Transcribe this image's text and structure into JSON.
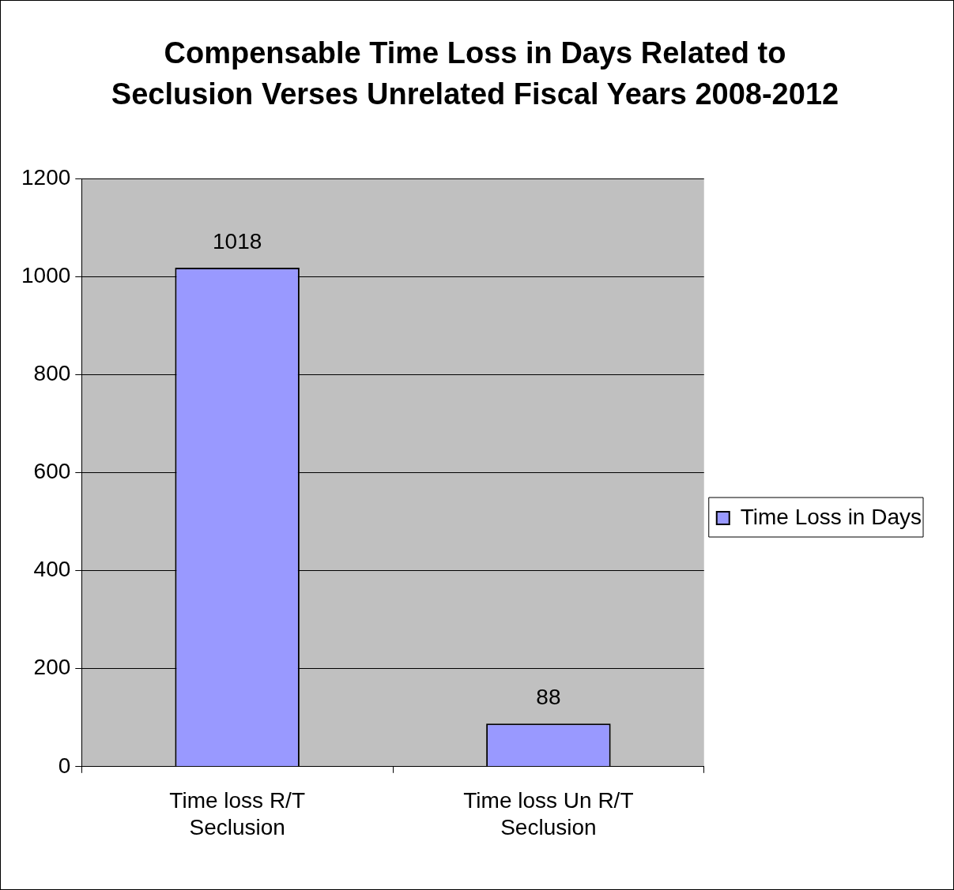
{
  "chart_data": {
    "type": "bar",
    "title": "Compensable Time Loss in Days Related to Seclusion Verses Unrelated Fiscal Years 2008-2012",
    "categories": [
      "Time loss R/T Seclusion",
      "Time loss Un R/T Seclusion"
    ],
    "series": [
      {
        "name": "Time Loss in Days",
        "color": "#9999ff",
        "values": [
          1018,
          88
        ]
      }
    ],
    "ylim": [
      0,
      1200
    ],
    "yticks": [
      0,
      200,
      400,
      600,
      800,
      1000,
      1200
    ],
    "grid": "y",
    "legend": "right",
    "data_labels": true
  }
}
